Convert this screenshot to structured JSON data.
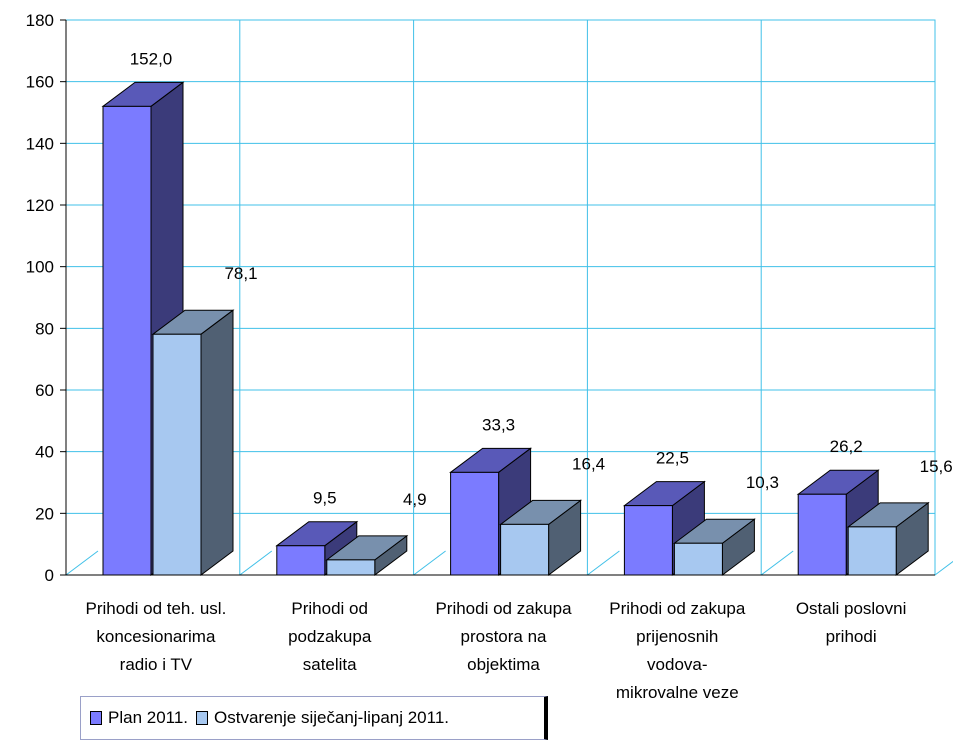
{
  "chart_data": {
    "type": "bar",
    "categories": [
      [
        "Prihodi od teh. usl.",
        "koncesionarima",
        "radio i TV"
      ],
      [
        "Prihodi od",
        "podzakupa",
        "satelita"
      ],
      [
        "Prihodi od zakupa",
        "prostora na",
        "objektima"
      ],
      [
        "Prihodi od zakupa",
        "prijenosnih",
        "vodova-",
        "mikrovalne veze"
      ],
      [
        "Ostali  poslovni",
        "prihodi"
      ]
    ],
    "series": [
      {
        "name": "Plan 2011.",
        "values": [
          152.0,
          9.5,
          33.3,
          22.5,
          26.2
        ],
        "labels": [
          "152,0",
          "9,5",
          "33,3",
          "22,5",
          "26,2"
        ],
        "color": "#7b7bff"
      },
      {
        "name": "Ostvarenje siječanj-lipanj 2011.",
        "values": [
          78.1,
          4.9,
          16.4,
          10.3,
          15.6
        ],
        "labels": [
          "78,1",
          "4,9",
          "16,4",
          "10,3",
          "15,6"
        ],
        "color": "#a7c8f0"
      }
    ],
    "ylim": [
      0,
      180
    ],
    "yticks": [
      0,
      20,
      40,
      60,
      80,
      100,
      120,
      140,
      160,
      180
    ],
    "grid": true,
    "three_d": true,
    "legend_position": "bottom-left"
  }
}
